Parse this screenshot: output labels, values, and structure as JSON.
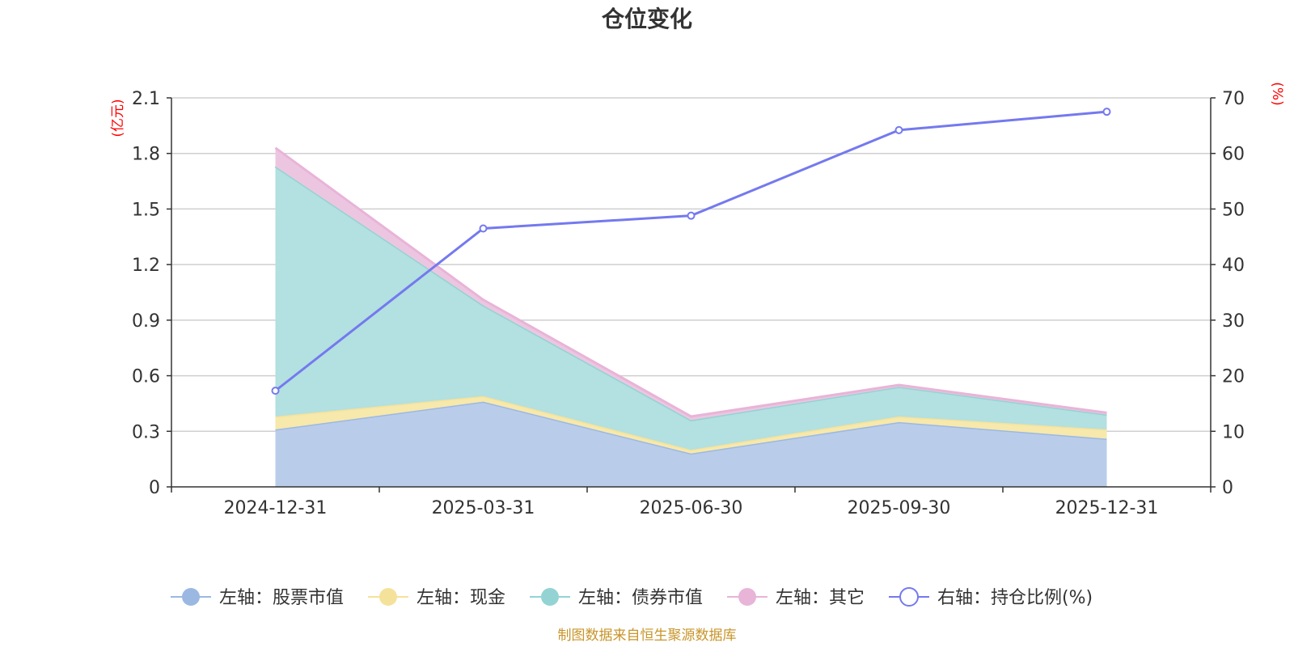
{
  "chart_data": {
    "type": "area",
    "title": "仓位变化",
    "categories": [
      "2024-12-31",
      "2025-03-31",
      "2025-06-30",
      "2025-09-30",
      "2025-12-31"
    ],
    "left_axis": {
      "unit": "(亿元)",
      "ticks": [
        "0",
        "0.3",
        "0.6",
        "0.9",
        "1.2",
        "1.5",
        "1.8",
        "2.1"
      ],
      "ylim": [
        0,
        2.1
      ]
    },
    "right_axis": {
      "unit": "(%)",
      "ticks": [
        "0",
        "10",
        "20",
        "30",
        "40",
        "50",
        "60",
        "70"
      ],
      "ylim": [
        0,
        70
      ]
    },
    "series": [
      {
        "name": "左轴：股票市值",
        "axis": "left",
        "stacked": true,
        "color": "#9bb8e3",
        "fill": "#b9cdeb",
        "values": [
          0.31,
          0.46,
          0.18,
          0.35,
          0.26
        ]
      },
      {
        "name": "左轴：现金",
        "axis": "left",
        "stacked": true,
        "color": "#f5e29a",
        "fill": "#f7e8ab",
        "values": [
          0.07,
          0.03,
          0.02,
          0.03,
          0.05
        ]
      },
      {
        "name": "左轴：债券市值",
        "axis": "left",
        "stacked": true,
        "color": "#93d3d3",
        "fill": "#b3e0e0",
        "values": [
          1.35,
          0.49,
          0.16,
          0.16,
          0.08
        ]
      },
      {
        "name": "左轴：其它",
        "axis": "left",
        "stacked": true,
        "color": "#e8b4d8",
        "fill": "#ecc6e1",
        "values": [
          0.1,
          0.03,
          0.02,
          0.01,
          0.01
        ]
      },
      {
        "name": "右轴：持仓比例(%)",
        "axis": "right",
        "type": "line",
        "color": "#7479ef",
        "values": [
          17.3,
          46.5,
          48.8,
          64.2,
          67.5
        ]
      }
    ],
    "source": "制图数据来自恒生聚源数据库"
  }
}
